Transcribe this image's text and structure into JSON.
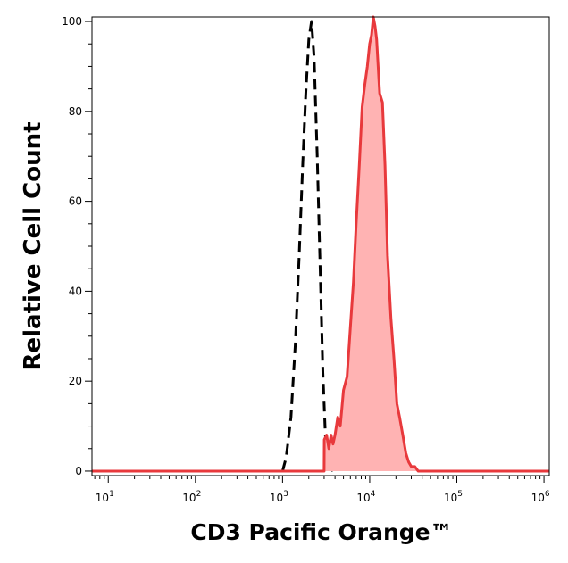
{
  "chart_data": {
    "type": "area",
    "xlabel": "CD3 Pacific Orange™",
    "ylabel": "Relative Cell Count",
    "x_scale": "log",
    "xlim": [
      6.5,
      1150000
    ],
    "ylim": [
      -1,
      101
    ],
    "x_ticks": [
      {
        "base": "10",
        "exp": "1",
        "value": 10
      },
      {
        "base": "10",
        "exp": "2",
        "value": 100
      },
      {
        "base": "10",
        "exp": "3",
        "value": 1000
      },
      {
        "base": "10",
        "exp": "4",
        "value": 10000
      },
      {
        "base": "10",
        "exp": "5",
        "value": 100000
      },
      {
        "base": "10",
        "exp": "6",
        "value": 1000000
      }
    ],
    "y_ticks": [
      0,
      20,
      40,
      60,
      80,
      100
    ],
    "grid": false,
    "legend": "none",
    "series": [
      {
        "style": "dashed",
        "color": "#000000",
        "x": [
          1000,
          1100,
          1250,
          1400,
          1550,
          1700,
          1850,
          2000,
          2150,
          2300,
          2500,
          2700,
          2900,
          3100,
          3300,
          3500,
          3800
        ],
        "y": [
          0,
          3,
          12,
          28,
          48,
          68,
          84,
          96,
          100,
          92,
          70,
          45,
          22,
          8,
          3,
          1,
          0
        ]
      },
      {
        "style": "filled",
        "color": "#e8393c",
        "fill": "#ffb3b3",
        "x": [
          6.5,
          20,
          50,
          100,
          300,
          1000,
          3000,
          3010,
          3200,
          3400,
          3600,
          3800,
          4000,
          4300,
          4600,
          5000,
          5500,
          6000,
          6500,
          7000,
          7600,
          8200,
          8800,
          9400,
          10000,
          10500,
          11000,
          11500,
          12000,
          12500,
          13000,
          14000,
          15000,
          16000,
          17500,
          19000,
          20500,
          22000,
          24000,
          26000,
          28000,
          30000,
          33000,
          36000,
          40000,
          100000,
          1000000,
          1150000
        ],
        "y": [
          0,
          0,
          0,
          0,
          0,
          0,
          0,
          7,
          8,
          5,
          8,
          6,
          8,
          12,
          10,
          18,
          21,
          32,
          42,
          55,
          68,
          81,
          86,
          90,
          95,
          97,
          101,
          99,
          96,
          90,
          84,
          82,
          68,
          48,
          34,
          25,
          15,
          12,
          8,
          4,
          2,
          1,
          1,
          0,
          0,
          0,
          0,
          0
        ]
      }
    ]
  }
}
